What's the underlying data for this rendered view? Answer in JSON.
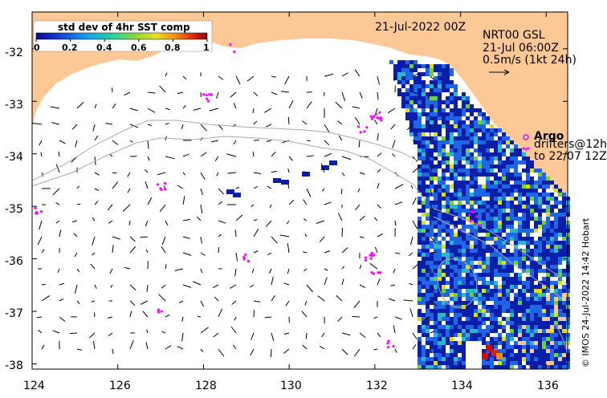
{
  "map": {
    "date_label": "21-Jul-2022 00Z",
    "product_label": "NRT00 GSL",
    "current_time_label": "21-Jul 06:00Z",
    "scale_label": "0.5m/s (1kt 24h)",
    "colorbar": {
      "title": "std dev of 4hr SST comp",
      "ticks": [
        "0",
        "0.2",
        "0.4",
        "0.6",
        "0.8",
        "1"
      ],
      "range": [
        0,
        1
      ]
    },
    "legend": {
      "argo_label": "Argo",
      "drifters_line1": "drifters@12h",
      "drifters_line2": "to 22/07 12Z",
      "argo_color": "#e010e0",
      "drifter_color": "#ff00ff"
    },
    "x_ticks": [
      "124",
      "126",
      "128",
      "130",
      "132",
      "134",
      "136"
    ],
    "y_ticks": [
      "-32",
      "-33",
      "-34",
      "-35",
      "-36",
      "-37",
      "-38"
    ],
    "lon_range": [
      124,
      136.5
    ],
    "lat_range": [
      -38.1,
      -31.3
    ],
    "credit": "© IMOS 24-Jul-2022 14:42 Hobart",
    "colors": {
      "land": "#fcc896",
      "sst_low": "#0a1fa8",
      "sst_mid": "#1e66e6",
      "sst_high": "#d9e016",
      "track": "#aaaaaa"
    }
  }
}
